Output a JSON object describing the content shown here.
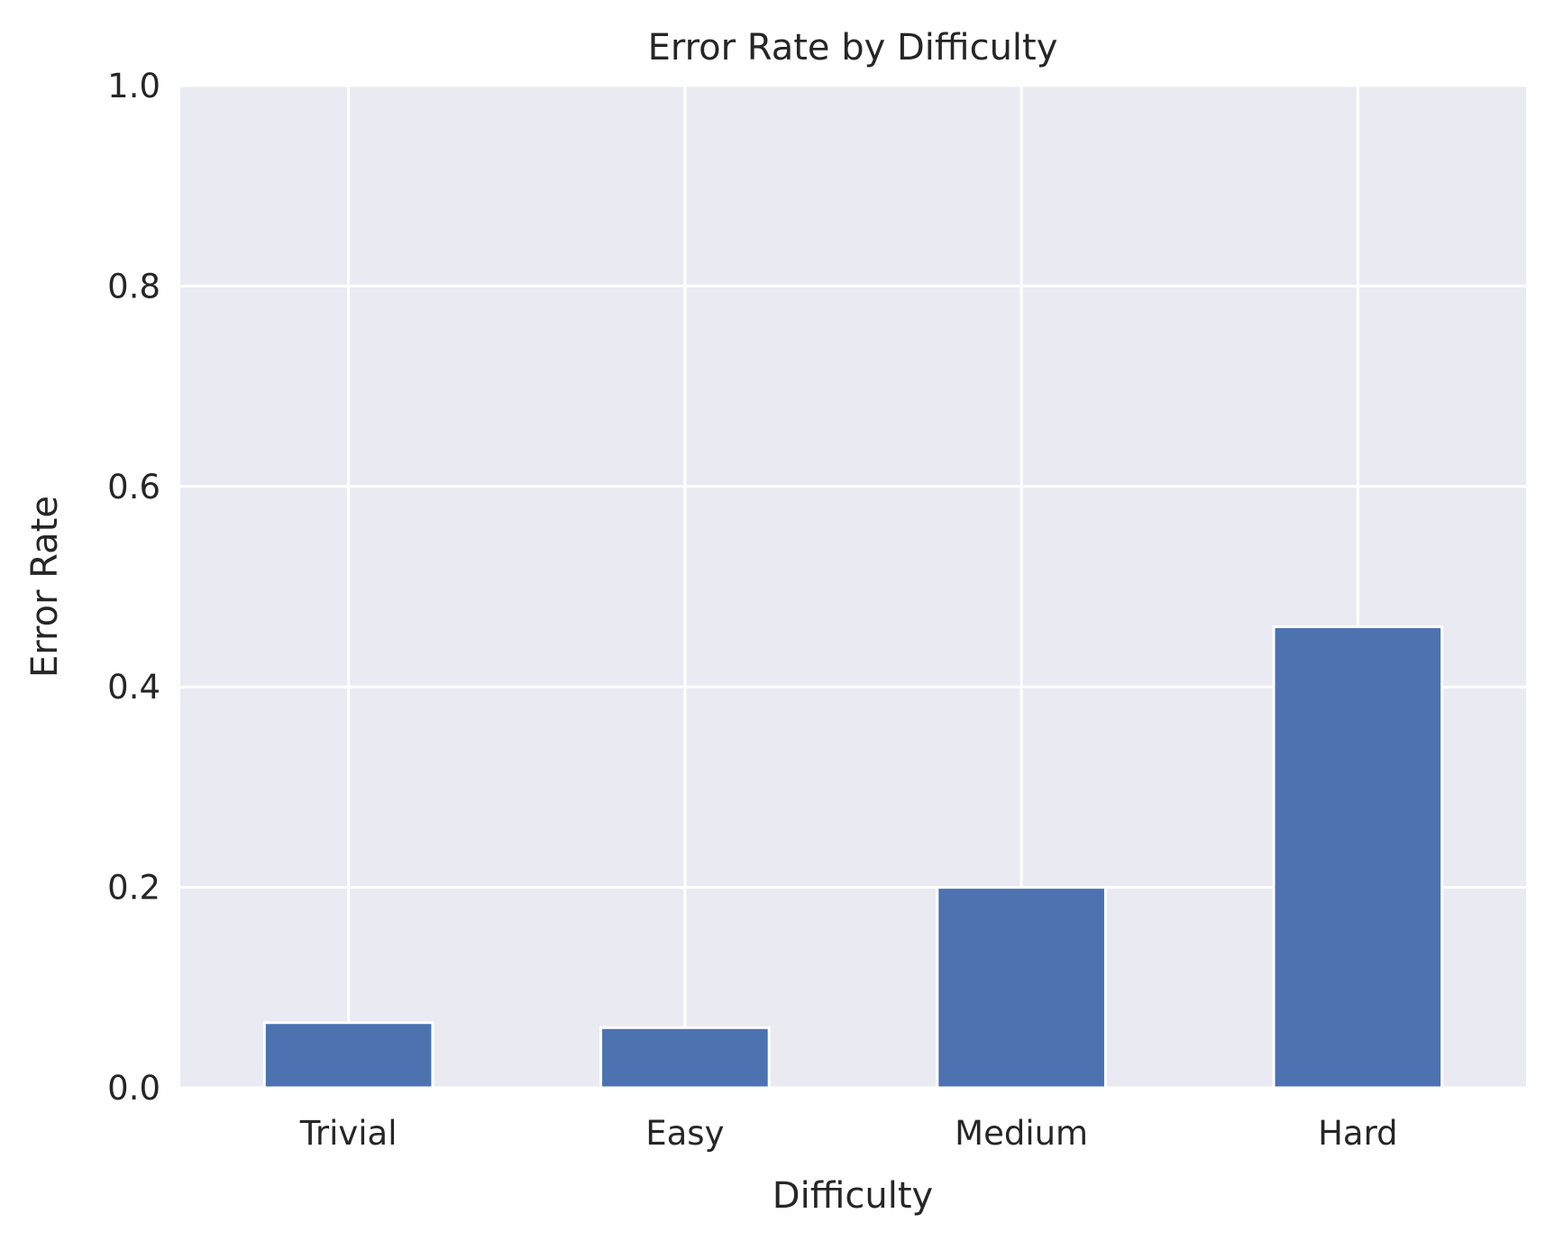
{
  "chart_data": {
    "type": "bar",
    "title": "Error Rate by Difficulty",
    "xlabel": "Difficulty",
    "ylabel": "Error Rate",
    "categories": [
      "Trivial",
      "Easy",
      "Medium",
      "Hard"
    ],
    "values": [
      0.065,
      0.06,
      0.2,
      0.46
    ],
    "ylim": [
      0,
      1.0
    ],
    "yticks": [
      0.0,
      0.2,
      0.4,
      0.6,
      0.8,
      1.0
    ],
    "ytick_labels": [
      "0.0",
      "0.2",
      "0.4",
      "0.6",
      "0.8",
      "1.0"
    ],
    "grid": true,
    "legend": "none",
    "colors": {
      "bar": "#4c72b0",
      "plot_background": "#eaeaf2",
      "grid": "#ffffff",
      "text": "#262626"
    }
  }
}
